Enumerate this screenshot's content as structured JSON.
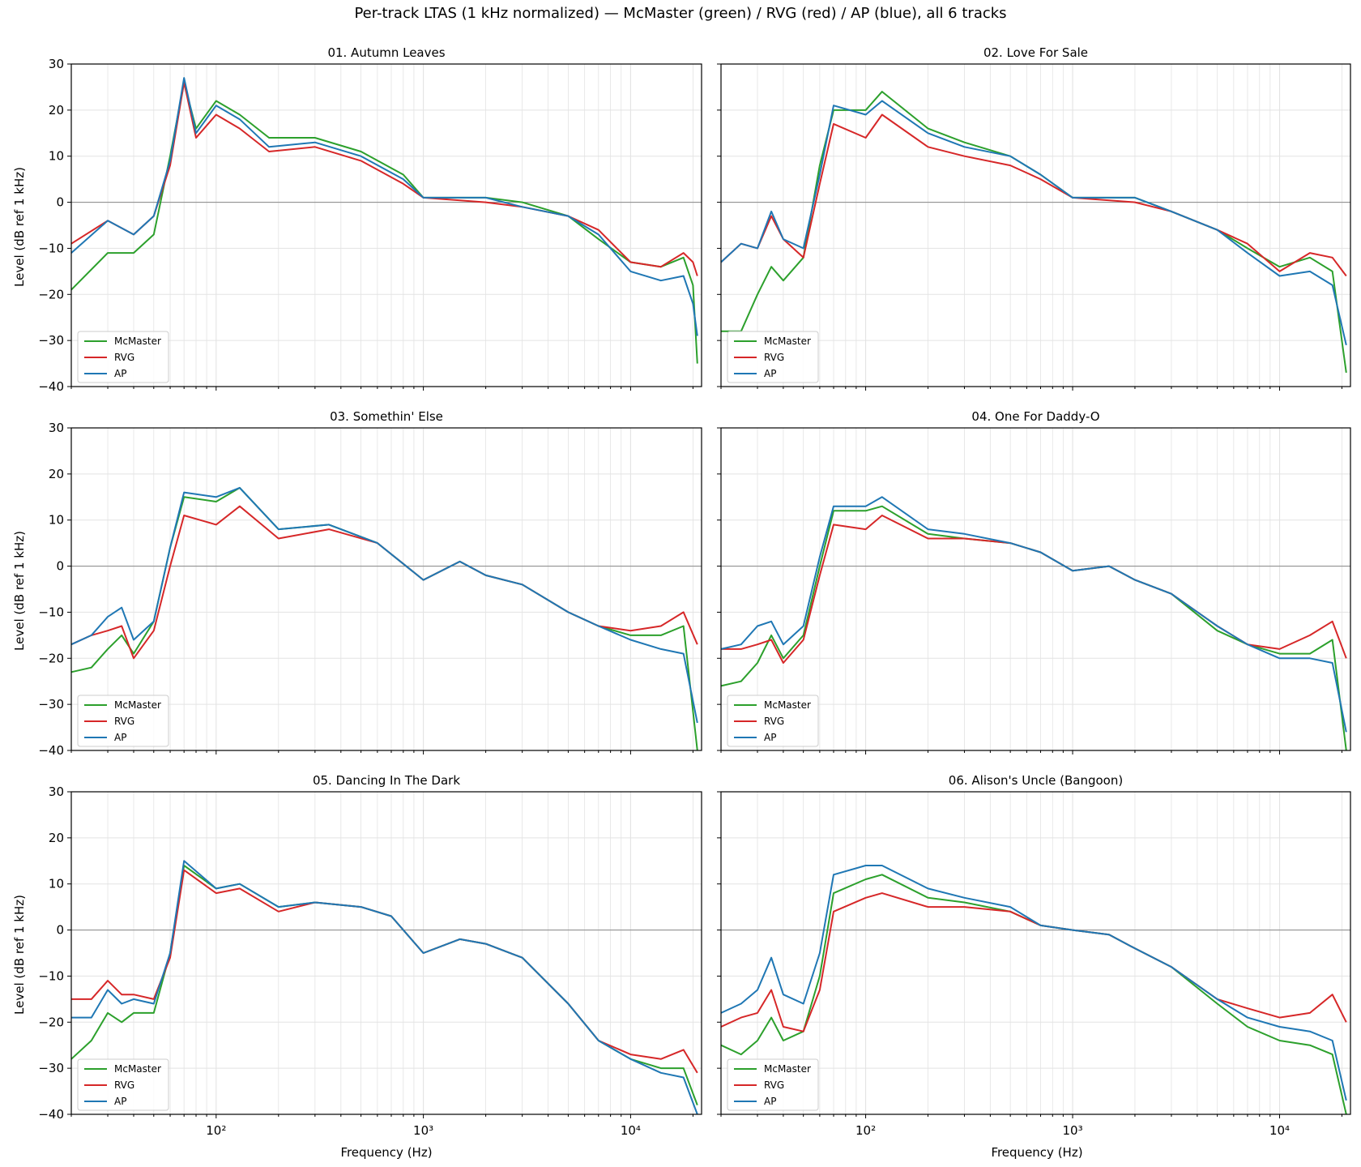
{
  "figure": {
    "title": "Per-track LTAS (1 kHz normalized) — McMaster (green) / RVG (red) / AP (blue), all 6 tracks",
    "xlabel": "Frequency (Hz)",
    "ylabel": "Level (dB ref 1 kHz)"
  },
  "colors": {
    "McMaster": "#2ca02c",
    "RVG": "#d62728",
    "AP": "#1f77b4",
    "grid": "#e3e3e3",
    "zero_line": "#888888"
  },
  "chart_data": [
    {
      "type": "line",
      "title": "01. Autumn Leaves",
      "xscale": "log",
      "xlim": [
        20,
        22000
      ],
      "ylim": [
        -40,
        30
      ],
      "xticks": [
        100,
        1000,
        10000
      ],
      "xtick_labels": [
        "10²",
        "10³",
        "10⁴"
      ],
      "yticks": [
        -40,
        -30,
        -20,
        -10,
        0,
        10,
        20,
        30
      ],
      "grid": true,
      "legend": "lower-left",
      "x": [
        20,
        30,
        40,
        50,
        60,
        70,
        80,
        100,
        130,
        180,
        300,
        500,
        800,
        1000,
        2000,
        3000,
        5000,
        7000,
        10000,
        14000,
        18000,
        20000,
        21000
      ],
      "series": [
        {
          "name": "McMaster",
          "values": [
            -19,
            -11,
            -11,
            -7,
            10,
            26,
            16,
            22,
            19,
            14,
            14,
            11,
            6,
            1,
            1,
            0,
            -3,
            -8,
            -13,
            -14,
            -12,
            -18,
            -35
          ]
        },
        {
          "name": "RVG",
          "values": [
            -9,
            -4,
            -7,
            -3,
            8,
            26,
            14,
            19,
            16,
            11,
            12,
            9,
            4,
            1,
            0,
            -1,
            -3,
            -6,
            -13,
            -14,
            -11,
            -13,
            -16
          ]
        },
        {
          "name": "AP",
          "values": [
            -11,
            -4,
            -7,
            -3,
            9,
            27,
            15,
            21,
            18,
            12,
            13,
            10,
            5,
            1,
            1,
            -1,
            -3,
            -7,
            -15,
            -17,
            -16,
            -22,
            -29
          ]
        }
      ]
    },
    {
      "type": "line",
      "title": "02. Love For Sale",
      "xscale": "log",
      "xlim": [
        20,
        22000
      ],
      "ylim": [
        -40,
        30
      ],
      "xticks": [
        100,
        1000,
        10000
      ],
      "xtick_labels": [
        "10²",
        "10³",
        "10⁴"
      ],
      "yticks": [
        -40,
        -30,
        -20,
        -10,
        0,
        10,
        20,
        30
      ],
      "grid": true,
      "legend": "lower-left",
      "x": [
        20,
        25,
        30,
        35,
        40,
        50,
        60,
        70,
        100,
        120,
        200,
        300,
        500,
        700,
        1000,
        2000,
        3000,
        5000,
        7000,
        10000,
        14000,
        18000,
        21000
      ],
      "series": [
        {
          "name": "McMaster",
          "values": [
            -28,
            -28,
            -20,
            -14,
            -17,
            -12,
            8,
            20,
            20,
            24,
            16,
            13,
            10,
            6,
            1,
            1,
            -2,
            -6,
            -10,
            -14,
            -12,
            -15,
            -37
          ]
        },
        {
          "name": "RVG",
          "values": [
            -13,
            -9,
            -10,
            -3,
            -8,
            -12,
            4,
            17,
            14,
            19,
            12,
            10,
            8,
            5,
            1,
            0,
            -2,
            -6,
            -9,
            -15,
            -11,
            -12,
            -16
          ]
        },
        {
          "name": "AP",
          "values": [
            -13,
            -9,
            -10,
            -2,
            -8,
            -10,
            6,
            21,
            19,
            22,
            15,
            12,
            10,
            6,
            1,
            1,
            -2,
            -6,
            -11,
            -16,
            -15,
            -18,
            -31
          ]
        }
      ]
    },
    {
      "type": "line",
      "title": "03. Somethin' Else",
      "xscale": "log",
      "xlim": [
        20,
        22000
      ],
      "ylim": [
        -40,
        30
      ],
      "xticks": [
        100,
        1000,
        10000
      ],
      "xtick_labels": [
        "10²",
        "10³",
        "10⁴"
      ],
      "yticks": [
        -40,
        -30,
        -20,
        -10,
        0,
        10,
        20,
        30
      ],
      "grid": true,
      "legend": "lower-left",
      "x": [
        20,
        25,
        30,
        35,
        40,
        50,
        60,
        70,
        100,
        130,
        200,
        350,
        600,
        1000,
        1500,
        2000,
        3000,
        5000,
        7000,
        10000,
        14000,
        18000,
        21000
      ],
      "series": [
        {
          "name": "McMaster",
          "values": [
            -23,
            -22,
            -18,
            -15,
            -19,
            -12,
            4,
            15,
            14,
            17,
            8,
            9,
            5,
            -3,
            1,
            -2,
            -4,
            -10,
            -13,
            -15,
            -15,
            -13,
            -40
          ]
        },
        {
          "name": "RVG",
          "values": [
            -17,
            -15,
            -14,
            -13,
            -20,
            -14,
            0,
            11,
            9,
            13,
            6,
            8,
            5,
            -3,
            1,
            -2,
            -4,
            -10,
            -13,
            -14,
            -13,
            -10,
            -17
          ]
        },
        {
          "name": "AP",
          "values": [
            -17,
            -15,
            -11,
            -9,
            -16,
            -12,
            4,
            16,
            15,
            17,
            8,
            9,
            5,
            -3,
            1,
            -2,
            -4,
            -10,
            -13,
            -16,
            -18,
            -19,
            -34
          ]
        }
      ]
    },
    {
      "type": "line",
      "title": "04. One For Daddy-O",
      "xscale": "log",
      "xlim": [
        20,
        22000
      ],
      "ylim": [
        -40,
        30
      ],
      "xticks": [
        100,
        1000,
        10000
      ],
      "xtick_labels": [
        "10²",
        "10³",
        "10⁴"
      ],
      "yticks": [
        -40,
        -30,
        -20,
        -10,
        0,
        10,
        20,
        30
      ],
      "grid": true,
      "legend": "lower-left",
      "x": [
        20,
        25,
        30,
        35,
        40,
        50,
        60,
        70,
        100,
        120,
        200,
        300,
        500,
        700,
        1000,
        1500,
        2000,
        3000,
        5000,
        7000,
        10000,
        14000,
        18000,
        21000
      ],
      "series": [
        {
          "name": "McMaster",
          "values": [
            -26,
            -25,
            -21,
            -15,
            -20,
            -15,
            0,
            12,
            12,
            13,
            7,
            6,
            5,
            3,
            -1,
            0,
            -3,
            -6,
            -14,
            -17,
            -19,
            -19,
            -16,
            -40
          ]
        },
        {
          "name": "RVG",
          "values": [
            -18,
            -18,
            -17,
            -16,
            -21,
            -16,
            -2,
            9,
            8,
            11,
            6,
            6,
            5,
            3,
            -1,
            0,
            -3,
            -6,
            -13,
            -17,
            -18,
            -15,
            -12,
            -20
          ]
        },
        {
          "name": "AP",
          "values": [
            -18,
            -17,
            -13,
            -12,
            -17,
            -13,
            2,
            13,
            13,
            15,
            8,
            7,
            5,
            3,
            -1,
            0,
            -3,
            -6,
            -13,
            -17,
            -20,
            -20,
            -21,
            -36
          ]
        }
      ]
    },
    {
      "type": "line",
      "title": "05. Dancing In The Dark",
      "xscale": "log",
      "xlim": [
        20,
        22000
      ],
      "ylim": [
        -40,
        30
      ],
      "xticks": [
        100,
        1000,
        10000
      ],
      "xtick_labels": [
        "10²",
        "10³",
        "10⁴"
      ],
      "yticks": [
        -40,
        -30,
        -20,
        -10,
        0,
        10,
        20,
        30
      ],
      "grid": true,
      "legend": "lower-left",
      "x": [
        20,
        25,
        30,
        35,
        40,
        50,
        60,
        70,
        100,
        130,
        200,
        300,
        500,
        700,
        1000,
        1500,
        2000,
        3000,
        5000,
        7000,
        10000,
        14000,
        18000,
        21000
      ],
      "series": [
        {
          "name": "McMaster",
          "values": [
            -28,
            -24,
            -18,
            -20,
            -18,
            -18,
            -5,
            14,
            9,
            10,
            5,
            6,
            5,
            3,
            -5,
            -2,
            -3,
            -6,
            -16,
            -24,
            -28,
            -30,
            -30,
            -38
          ]
        },
        {
          "name": "RVG",
          "values": [
            -15,
            -15,
            -11,
            -14,
            -14,
            -15,
            -6,
            13,
            8,
            9,
            4,
            6,
            5,
            3,
            -5,
            -2,
            -3,
            -6,
            -16,
            -24,
            -27,
            -28,
            -26,
            -31
          ]
        },
        {
          "name": "AP",
          "values": [
            -19,
            -19,
            -13,
            -16,
            -15,
            -16,
            -5,
            15,
            9,
            10,
            5,
            6,
            5,
            3,
            -5,
            -2,
            -3,
            -6,
            -16,
            -24,
            -28,
            -31,
            -32,
            -40
          ]
        }
      ]
    },
    {
      "type": "line",
      "title": "06. Alison's Uncle (Bangoon)",
      "xscale": "log",
      "xlim": [
        20,
        22000
      ],
      "ylim": [
        -40,
        30
      ],
      "xticks": [
        100,
        1000,
        10000
      ],
      "xtick_labels": [
        "10²",
        "10³",
        "10⁴"
      ],
      "yticks": [
        -40,
        -30,
        -20,
        -10,
        0,
        10,
        20,
        30
      ],
      "grid": true,
      "legend": "lower-left",
      "x": [
        20,
        25,
        30,
        35,
        40,
        50,
        60,
        70,
        100,
        120,
        200,
        300,
        500,
        700,
        1000,
        1500,
        2000,
        3000,
        5000,
        7000,
        10000,
        14000,
        18000,
        21000
      ],
      "series": [
        {
          "name": "McMaster",
          "values": [
            -25,
            -27,
            -24,
            -19,
            -24,
            -22,
            -10,
            8,
            11,
            12,
            7,
            6,
            4,
            1,
            0,
            -1,
            -4,
            -8,
            -16,
            -21,
            -24,
            -25,
            -27,
            -40
          ]
        },
        {
          "name": "RVG",
          "values": [
            -21,
            -19,
            -18,
            -13,
            -21,
            -22,
            -13,
            4,
            7,
            8,
            5,
            5,
            4,
            1,
            0,
            -1,
            -4,
            -8,
            -15,
            -17,
            -19,
            -18,
            -14,
            -20
          ]
        },
        {
          "name": "AP",
          "values": [
            -18,
            -16,
            -13,
            -6,
            -14,
            -16,
            -5,
            12,
            14,
            14,
            9,
            7,
            5,
            1,
            0,
            -1,
            -4,
            -8,
            -15,
            -19,
            -21,
            -22,
            -24,
            -37
          ]
        }
      ]
    }
  ]
}
